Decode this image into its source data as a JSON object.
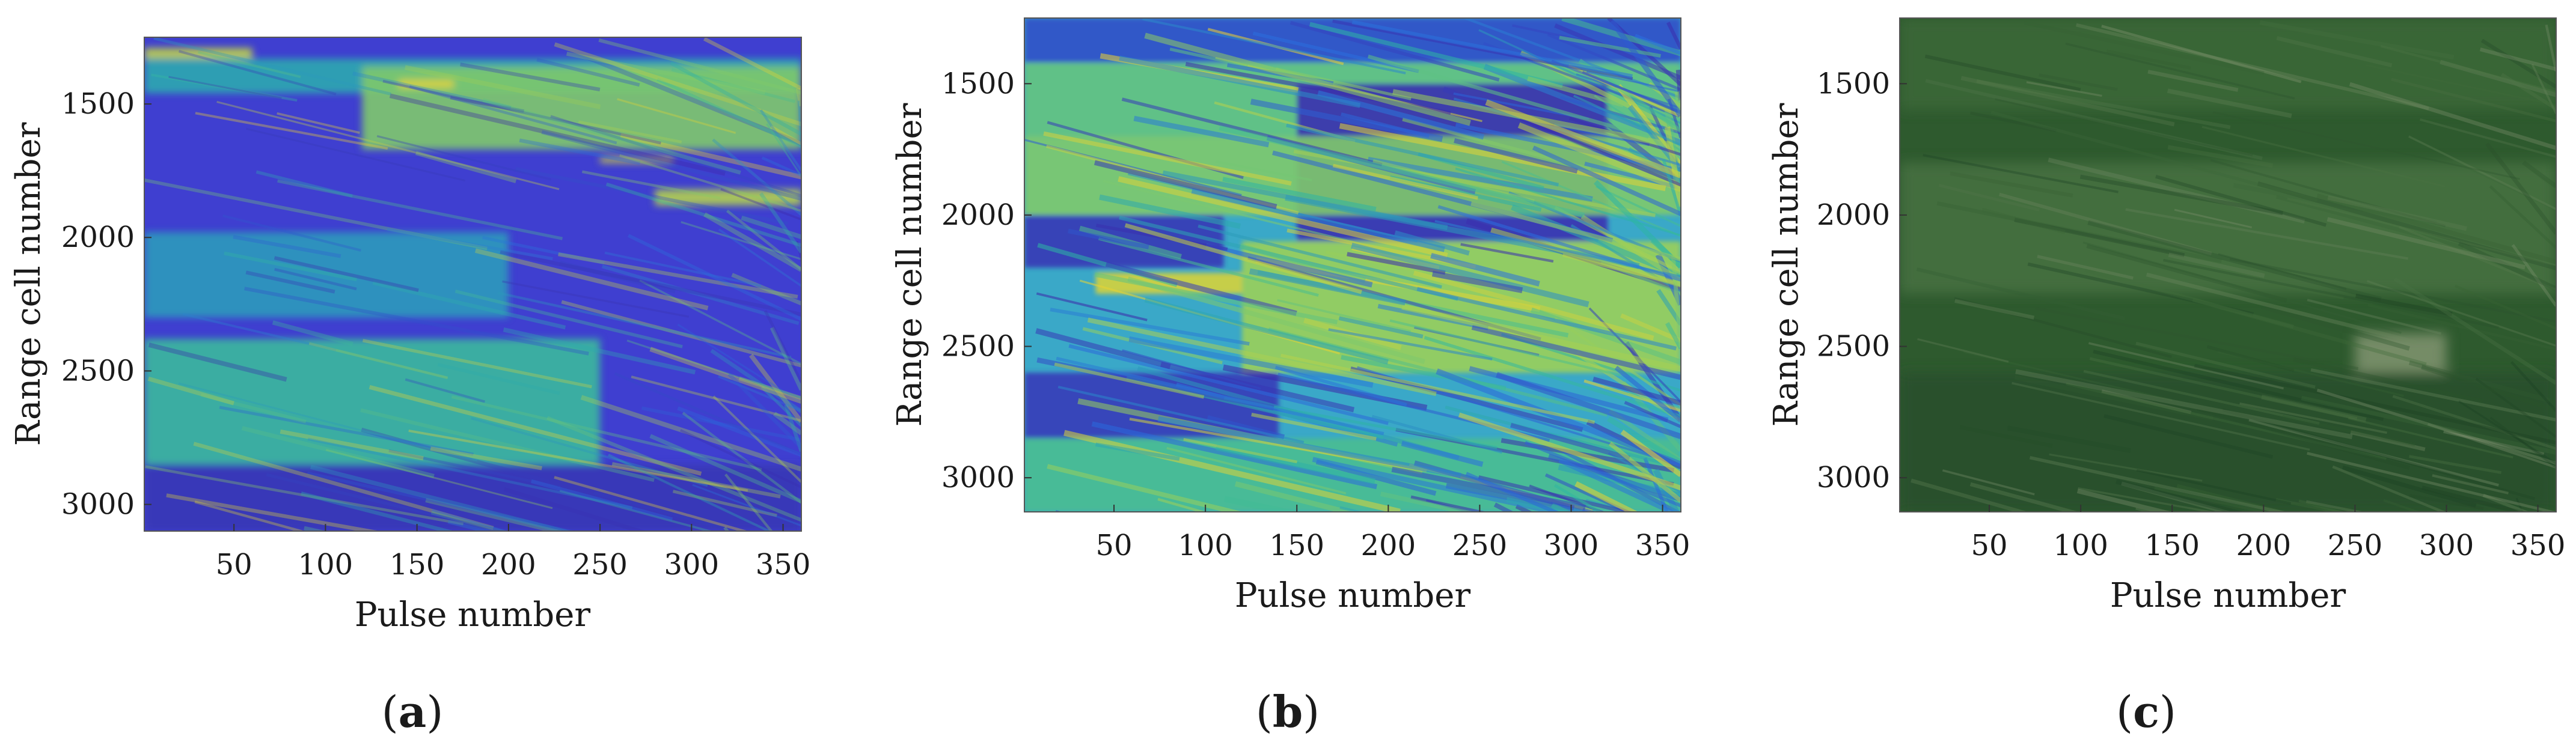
{
  "chart_data": [
    {
      "type": "heatmap",
      "panel_label": "a",
      "colormap": "parula",
      "xlabel": "Pulse number",
      "ylabel": "Range cell number",
      "xlim": [
        1,
        360
      ],
      "ylim": [
        1250,
        3100
      ],
      "x_ticks": [
        50,
        100,
        150,
        200,
        250,
        300,
        350
      ],
      "y_ticks": [
        1500,
        2000,
        2500,
        3000
      ],
      "value_range": [
        0,
        1
      ],
      "bands": [
        {
          "x0": 1,
          "y0": 1290,
          "x1": 60,
          "y1": 1330,
          "v": 0.88
        },
        {
          "x0": 1,
          "y0": 1330,
          "x1": 360,
          "y1": 1460,
          "v": 0.55
        },
        {
          "x0": 120,
          "y0": 1360,
          "x1": 360,
          "y1": 1670,
          "v": 0.75
        },
        {
          "x0": 140,
          "y0": 1410,
          "x1": 170,
          "y1": 1440,
          "v": 0.95
        },
        {
          "x0": 250,
          "y0": 1700,
          "x1": 290,
          "y1": 1720,
          "v": 0.92
        },
        {
          "x0": 280,
          "y0": 1820,
          "x1": 360,
          "y1": 1880,
          "v": 0.85
        },
        {
          "x0": 1,
          "y0": 1980,
          "x1": 200,
          "y1": 2300,
          "v": 0.5
        },
        {
          "x0": 1,
          "y0": 2380,
          "x1": 250,
          "y1": 2850,
          "v": 0.62
        },
        {
          "x0": 1,
          "y0": 2850,
          "x1": 360,
          "y1": 3100,
          "v": 0.08
        }
      ]
    },
    {
      "type": "heatmap",
      "panel_label": "b",
      "colormap": "parula",
      "xlabel": "Pulse number",
      "ylabel": "Range cell number",
      "xlim": [
        1,
        360
      ],
      "ylim": [
        1250,
        3130
      ],
      "x_ticks": [
        50,
        100,
        150,
        200,
        250,
        300,
        350
      ],
      "y_ticks": [
        1500,
        2000,
        2500,
        3000
      ],
      "value_range": [
        0,
        1
      ],
      "bands": [
        {
          "x0": 1,
          "y0": 1250,
          "x1": 360,
          "y1": 1420,
          "v": 0.2
        },
        {
          "x0": 1,
          "y0": 1420,
          "x1": 360,
          "y1": 1700,
          "v": 0.7
        },
        {
          "x0": 150,
          "y0": 1500,
          "x1": 320,
          "y1": 2100,
          "v": 0.05
        },
        {
          "x0": 1,
          "y0": 1700,
          "x1": 360,
          "y1": 2000,
          "v": 0.75
        },
        {
          "x0": 1,
          "y0": 2000,
          "x1": 110,
          "y1": 2200,
          "v": 0.08
        },
        {
          "x0": 40,
          "y0": 2220,
          "x1": 120,
          "y1": 2300,
          "v": 0.93
        },
        {
          "x0": 120,
          "y0": 2100,
          "x1": 360,
          "y1": 2600,
          "v": 0.8
        },
        {
          "x0": 1,
          "y0": 2600,
          "x1": 140,
          "y1": 2850,
          "v": 0.1
        },
        {
          "x0": 1,
          "y0": 2850,
          "x1": 360,
          "y1": 3130,
          "v": 0.65
        }
      ]
    },
    {
      "type": "heatmap",
      "panel_label": "c",
      "colormap": "satellite-green",
      "xlabel": "Pulse number",
      "ylabel": "Range cell number",
      "xlim": [
        1,
        360
      ],
      "ylim": [
        1250,
        3130
      ],
      "x_ticks": [
        50,
        100,
        150,
        200,
        250,
        300,
        350
      ],
      "y_ticks": [
        1500,
        2000,
        2500,
        3000
      ],
      "value_range": [
        0,
        1
      ],
      "bands": [
        {
          "x0": 1,
          "y0": 1250,
          "x1": 360,
          "y1": 1600,
          "v": 0.45
        },
        {
          "x0": 1,
          "y0": 1800,
          "x1": 360,
          "y1": 2300,
          "v": 0.55
        },
        {
          "x0": 250,
          "y0": 2450,
          "x1": 300,
          "y1": 2600,
          "v": 0.9
        },
        {
          "x0": 1,
          "y0": 2600,
          "x1": 360,
          "y1": 3130,
          "v": 0.2
        }
      ]
    }
  ],
  "colors": {
    "parula_low": "#3d26a8",
    "parula_mid": "#2fb7a3",
    "parula_high": "#f6d42c",
    "satellite_dark": "#1a3d22",
    "satellite_light": "#8c9a7a"
  }
}
